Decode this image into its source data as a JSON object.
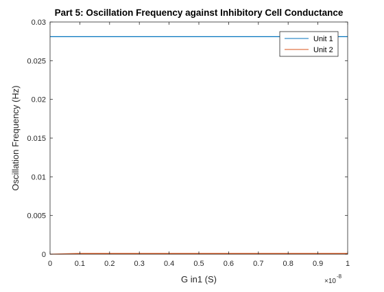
{
  "chart_data": {
    "type": "line",
    "title": "Part 5: Oscillation Frequency against Inhibitory Cell Conductance",
    "xlabel": "G in1 (S)",
    "ylabel": "Oscillation Frequency (Hz)",
    "x_exponent_label": "×10",
    "x_exponent_power": "-8",
    "xlim": [
      0,
      1
    ],
    "ylim": [
      0,
      0.03
    ],
    "x_ticks": [
      0,
      0.1,
      0.2,
      0.3,
      0.4,
      0.5,
      0.6,
      0.7,
      0.8,
      0.9,
      1
    ],
    "x_tick_labels": [
      "0",
      "0.1",
      "0.2",
      "0.3",
      "0.4",
      "0.5",
      "0.6",
      "0.7",
      "0.8",
      "0.9",
      "1"
    ],
    "y_ticks": [
      0,
      0.005,
      0.01,
      0.015,
      0.02,
      0.025,
      0.03
    ],
    "y_tick_labels": [
      "0",
      "0.005",
      "0.01",
      "0.015",
      "0.02",
      "0.025",
      "0.03"
    ],
    "grid": false,
    "legend_position": "top-right",
    "series": [
      {
        "name": "Unit 1",
        "color": "#0072BD",
        "x": [
          0,
          1
        ],
        "y": [
          0.0281,
          0.0281
        ]
      },
      {
        "name": "Unit 2",
        "color": "#D95319",
        "x": [
          0,
          0.1,
          1
        ],
        "y": [
          0,
          0.0001,
          0.0001
        ]
      }
    ]
  }
}
